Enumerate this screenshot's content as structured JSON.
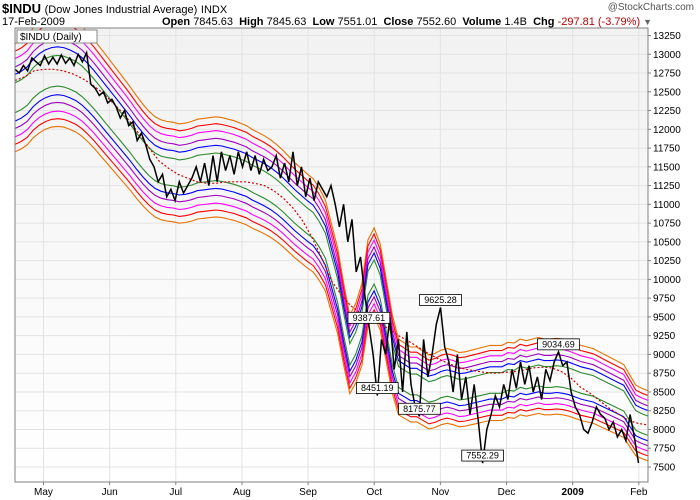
{
  "header": {
    "symbol": "$INDU",
    "name": "(Dow Jones Industrial Average)",
    "exchange": "INDX",
    "date": "17-Feb-2009",
    "open_label": "Open",
    "open": "7845.63",
    "high_label": "High",
    "high": "7845.63",
    "low_label": "Low",
    "low": "7551.01",
    "close_label": "Close",
    "close": "7552.60",
    "volume_label": "Volume",
    "volume": "1.4B",
    "chg_label": "Chg",
    "chg": "-297.81 (-3.79%)",
    "brand": "@StockCharts.com",
    "legend": "$INDU (Daily)"
  },
  "chart_data": {
    "type": "line",
    "ylim": [
      7300,
      13350
    ],
    "yticks": [
      7500,
      7750,
      8000,
      8250,
      8500,
      8750,
      9000,
      9250,
      9500,
      9750,
      10000,
      10250,
      10500,
      10750,
      11000,
      11250,
      11500,
      11750,
      12000,
      12250,
      12500,
      12750,
      13000,
      13250
    ],
    "months": [
      "May",
      "Jun",
      "Jul",
      "Aug",
      "Sep",
      "Oct",
      "Nov",
      "Dec",
      "2009",
      "Feb"
    ],
    "month_bold": [
      false,
      false,
      false,
      false,
      false,
      false,
      false,
      false,
      true,
      false
    ],
    "price_series": {
      "name": "$INDU",
      "values": [
        12800,
        12750,
        12850,
        12780,
        12950,
        12900,
        12850,
        12980,
        12870,
        12960,
        12870,
        12990,
        12880,
        12950,
        12850,
        13000,
        12900,
        13020,
        12600,
        12550,
        12450,
        12500,
        12350,
        12400,
        12300,
        12150,
        12250,
        12050,
        12100,
        11850,
        11950,
        11800,
        11600,
        11500,
        11300,
        11400,
        11100,
        11200,
        11050,
        11300,
        11150,
        11250,
        11350,
        11500,
        11300,
        11550,
        11250,
        11650,
        11300,
        11700,
        11450,
        11650,
        11400,
        11700,
        11500,
        11700,
        11450,
        11650,
        11400,
        11600,
        11450,
        11500,
        11650,
        11350,
        11550,
        11300,
        11700,
        11250,
        11500,
        11100,
        11350,
        11050,
        11300,
        11200,
        11100,
        11250,
        11000,
        10700,
        11000,
        10500,
        10800,
        10100,
        10300,
        9800,
        9387.61,
        9000,
        8451.19,
        9200,
        9000,
        9500,
        8800,
        9200,
        8500,
        9300,
        8600,
        8300,
        8175.77,
        9200,
        8700,
        9000,
        9400,
        9625.28,
        9100,
        8900,
        8500,
        9000,
        8400,
        8700,
        8200,
        8600,
        8100,
        7552.29,
        8000,
        8200,
        8450,
        8300,
        8600,
        8400,
        8800,
        8550,
        8900,
        8600,
        8850,
        8500,
        8700,
        8400,
        8800,
        8650,
        8900,
        9034.69,
        8850,
        8900,
        8500,
        8300,
        8200,
        8000,
        7950,
        8100,
        8300,
        8200,
        8150,
        8000,
        8100,
        7900,
        8000,
        7850,
        8200,
        7900,
        7552.6
      ]
    },
    "ma_series": {
      "name": "moving-average",
      "values": [
        12650,
        12700,
        12780,
        12800,
        12800,
        12780,
        12740,
        12680,
        12600,
        12500,
        12380,
        12250,
        12100,
        11930,
        11750,
        11580,
        11480,
        11400,
        11350,
        11300,
        11280,
        11280,
        11300,
        11300,
        11300,
        11280,
        11250,
        11180,
        11080,
        10950,
        10780,
        10550,
        10280,
        9980,
        9800,
        9650,
        9550,
        9470,
        9410,
        9340,
        9250,
        9180,
        9100,
        9020,
        8950,
        8890,
        8840,
        8800,
        8780,
        8760,
        8750,
        8760,
        8770,
        8790,
        8820,
        8830,
        8820,
        8770,
        8680,
        8560,
        8480,
        8380,
        8280,
        8200,
        8120,
        8080,
        8060
      ]
    },
    "envelope_center": [
      12420,
      12460,
      12520,
      12620,
      12690,
      12740,
      12770,
      12780,
      12770,
      12740,
      12700,
      12640,
      12560,
      12470,
      12370,
      12270,
      12170,
      12070,
      11970,
      11870,
      11760,
      11660,
      11570,
      11500,
      11460,
      11440,
      11430,
      11410,
      11420,
      11440,
      11470,
      11480,
      11490,
      11500,
      11490,
      11470,
      11450,
      11420,
      11390,
      11340,
      11300,
      11260,
      11210,
      11150,
      11080,
      11000,
      10920,
      10850,
      10780,
      10720,
      10600,
      10450,
      10150,
      9850,
      9400,
      9000,
      9150,
      9400,
      9950,
      10100,
      9900,
      9450,
      9000,
      8700,
      8650,
      8600,
      8600,
      8550,
      8500,
      8520,
      8560,
      8580,
      8560,
      8530,
      8540,
      8560,
      8580,
      8600,
      8620,
      8620,
      8620,
      8660,
      8650,
      8700,
      8680,
      8700,
      8720,
      8700,
      8700,
      8710,
      8700,
      8680,
      8650,
      8620,
      8600,
      8580,
      8540,
      8500,
      8460,
      8420,
      8380,
      8250,
      8120,
      8080,
      8050
    ],
    "envelope_offsets_pct": [
      5.8,
      5.0,
      4.2,
      3.3,
      2.5,
      -2.5,
      -3.3,
      -4.2,
      -5.0,
      -5.8
    ],
    "envelope_colors": [
      "#e87000",
      "#ff0000",
      "#ff00ff",
      "#a000c0",
      "#0000ff",
      "#0000ff",
      "#a000c0",
      "#ff00ff",
      "#ff0000",
      "#e87000"
    ],
    "callouts": [
      {
        "label": "9387.61",
        "value": 9387.61
      },
      {
        "label": "8451.19",
        "value": 8451.19
      },
      {
        "label": "8175.77",
        "value": 8175.77
      },
      {
        "label": "9625.28",
        "value": 9625.28
      },
      {
        "label": "7552.29",
        "value": 7552.29
      },
      {
        "label": "9034.69",
        "value": 9034.69
      }
    ],
    "price_color": "#000000",
    "ma_color": "#cc0000",
    "plot_bg_top": "#f2f2f2",
    "plot_bg_bottom": "#ffffff",
    "frame_color": "#808080",
    "grid": true
  }
}
